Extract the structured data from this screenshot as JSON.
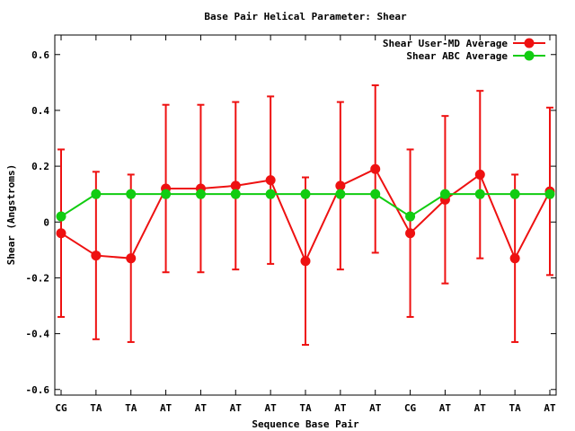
{
  "chart_data": {
    "type": "line",
    "title": "Base Pair Helical Parameter: Shear",
    "xlabel": "Sequence Base Pair",
    "ylabel": "Shear (Angstroms)",
    "categories": [
      "CG",
      "TA",
      "TA",
      "AT",
      "AT",
      "AT",
      "AT",
      "TA",
      "AT",
      "AT",
      "CG",
      "AT",
      "AT",
      "TA",
      "AT"
    ],
    "ylim": [
      -0.62,
      0.67
    ],
    "yticks": [
      -0.6,
      -0.4,
      -0.2,
      0,
      0.2,
      0.4,
      0.6
    ],
    "ytick_labels": [
      "-0.6",
      "-0.4",
      "-0.2",
      "0",
      "0.2",
      "0.4",
      "0.6"
    ],
    "grid": false,
    "legend_position": "top-right",
    "series": [
      {
        "name": "Shear User-MD Average",
        "color": "#ee1111",
        "values": [
          -0.04,
          -0.12,
          -0.13,
          0.12,
          0.12,
          0.13,
          0.15,
          -0.14,
          0.13,
          0.19,
          -0.04,
          0.08,
          0.17,
          -0.13,
          0.11
        ],
        "error": [
          0.3,
          0.3,
          0.3,
          0.3,
          0.3,
          0.3,
          0.3,
          0.3,
          0.3,
          0.3,
          0.3,
          0.3,
          0.3,
          0.3,
          0.3
        ]
      },
      {
        "name": "Shear ABC Average",
        "color": "#11cc11",
        "values": [
          0.02,
          0.1,
          0.1,
          0.1,
          0.1,
          0.1,
          0.1,
          0.1,
          0.1,
          0.1,
          0.02,
          0.1,
          0.1,
          0.1,
          0.1
        ]
      }
    ]
  }
}
